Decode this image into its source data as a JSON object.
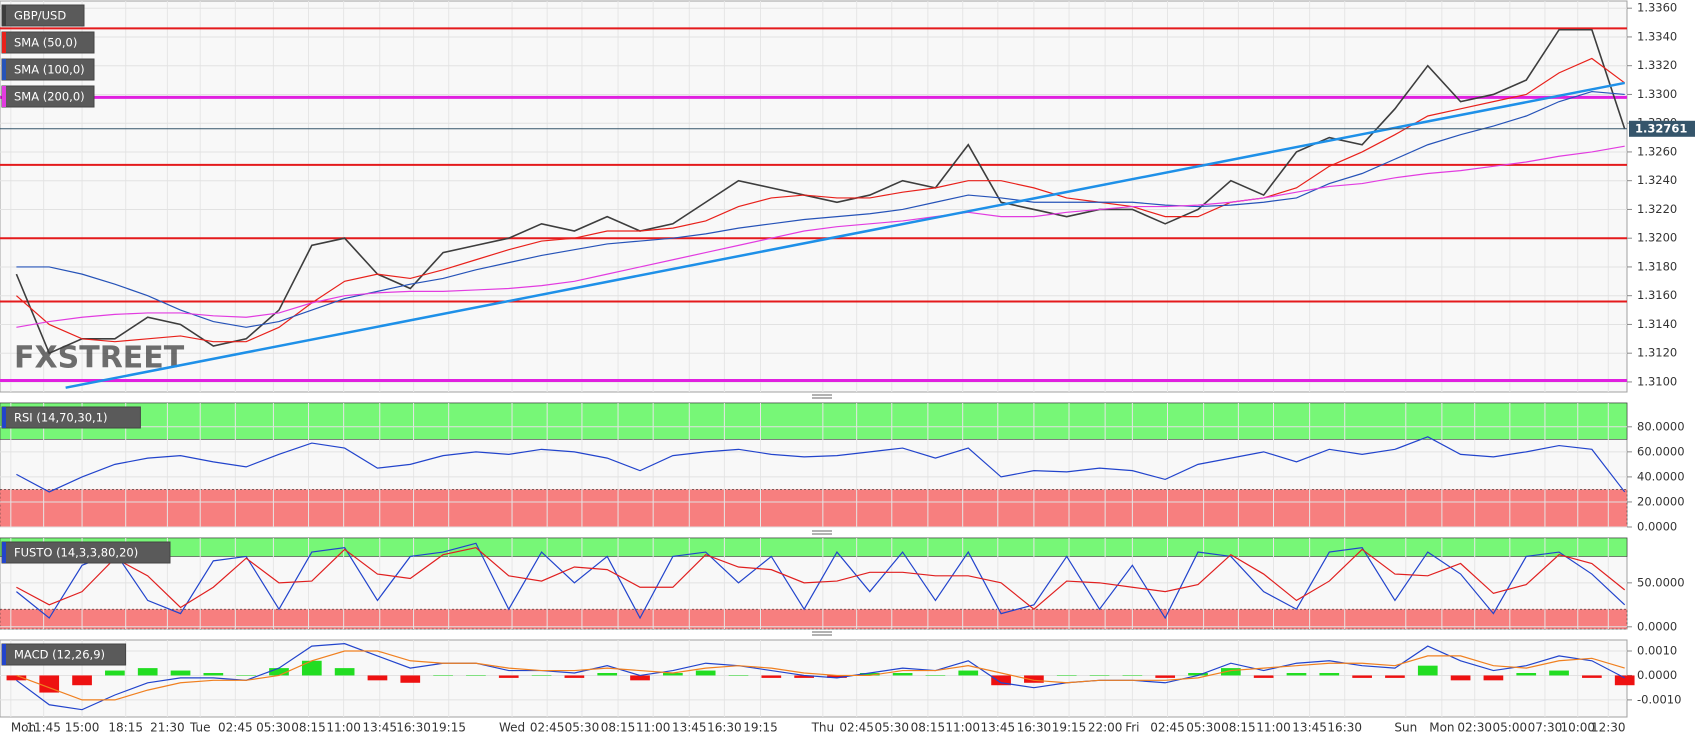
{
  "chart_data": [
    {
      "type": "line",
      "grid": true,
      "watermark": "FXSTREET",
      "x": [
        0,
        1,
        2,
        3,
        4,
        5,
        6,
        7,
        8,
        9,
        10,
        11,
        12,
        13,
        14,
        15,
        16,
        17,
        18,
        19,
        20,
        21,
        22,
        23,
        24,
        25,
        26,
        27,
        28,
        29,
        30,
        31,
        32,
        33,
        34,
        35,
        36,
        37,
        38,
        39,
        40,
        41,
        42,
        43,
        44,
        45,
        46,
        47,
        48,
        49
      ],
      "xlim": [
        -0.5,
        49.07
      ],
      "xticks": [
        {
          "value": -0.17,
          "label": "Mon"
        },
        {
          "value": 0.83,
          "label": "11:45"
        },
        {
          "value": 2.0,
          "label": "15:00"
        },
        {
          "value": 3.33,
          "label": "18:15"
        },
        {
          "value": 4.6,
          "label": "21:30"
        },
        {
          "value": 5.6,
          "label": "Tue"
        },
        {
          "value": 6.67,
          "label": "02:45"
        },
        {
          "value": 7.83,
          "label": "05:30"
        },
        {
          "value": 8.9,
          "label": "08:15"
        },
        {
          "value": 9.97,
          "label": "11:00"
        },
        {
          "value": 11.07,
          "label": "13:45"
        },
        {
          "value": 12.1,
          "label": "16:30"
        },
        {
          "value": 13.17,
          "label": "19:15"
        },
        {
          "value": 15.1,
          "label": "Wed"
        },
        {
          "value": 16.17,
          "label": "02:45"
        },
        {
          "value": 17.23,
          "label": "05:30"
        },
        {
          "value": 18.33,
          "label": "08:15"
        },
        {
          "value": 19.4,
          "label": "11:00"
        },
        {
          "value": 20.5,
          "label": "13:45"
        },
        {
          "value": 21.57,
          "label": "16:30"
        },
        {
          "value": 22.67,
          "label": "19:15"
        },
        {
          "value": 24.57,
          "label": "Thu"
        },
        {
          "value": 25.6,
          "label": "02:45"
        },
        {
          "value": 26.67,
          "label": "05:30"
        },
        {
          "value": 27.77,
          "label": "08:15"
        },
        {
          "value": 28.83,
          "label": "11:00"
        },
        {
          "value": 29.9,
          "label": "13:45"
        },
        {
          "value": 31.0,
          "label": "16:30"
        },
        {
          "value": 32.07,
          "label": "19:15"
        },
        {
          "value": 33.17,
          "label": "22:00"
        },
        {
          "value": 34.0,
          "label": "Fri"
        },
        {
          "value": 35.07,
          "label": "02:45"
        },
        {
          "value": 36.17,
          "label": "05:30"
        },
        {
          "value": 37.23,
          "label": "08:15"
        },
        {
          "value": 38.3,
          "label": "11:00"
        },
        {
          "value": 39.4,
          "label": "13:45"
        },
        {
          "value": 40.47,
          "label": "16:30"
        },
        {
          "value": 42.33,
          "label": "Sun"
        },
        {
          "value": 43.43,
          "label": "Mon"
        },
        {
          "value": 44.43,
          "label": "02:30"
        },
        {
          "value": 45.5,
          "label": "05:00"
        },
        {
          "value": 46.57,
          "label": "07:30"
        },
        {
          "value": 47.57,
          "label": "10:00"
        },
        {
          "value": 48.5,
          "label": "12:30"
        }
      ],
      "ylim": [
        1.3093,
        1.3365
      ],
      "yticks": [
        {
          "value": 1.31,
          "label": "1.3100"
        },
        {
          "value": 1.312,
          "label": "1.3120"
        },
        {
          "value": 1.314,
          "label": "1.3140"
        },
        {
          "value": 1.316,
          "label": "1.3160"
        },
        {
          "value": 1.318,
          "label": "1.3180"
        },
        {
          "value": 1.32,
          "label": "1.3200"
        },
        {
          "value": 1.322,
          "label": "1.3220"
        },
        {
          "value": 1.324,
          "label": "1.3240"
        },
        {
          "value": 1.326,
          "label": "1.3260"
        },
        {
          "value": 1.328,
          "label": "1.3280"
        },
        {
          "value": 1.33,
          "label": "1.3300"
        },
        {
          "value": 1.332,
          "label": "1.3320"
        },
        {
          "value": 1.334,
          "label": "1.3340"
        },
        {
          "value": 1.336,
          "label": "1.3360"
        }
      ],
      "levels": [
        {
          "value": 1.3346,
          "color": "#e41a1c"
        },
        {
          "value": 1.3298,
          "color": "#e020e0"
        },
        {
          "value": 1.3251,
          "color": "#e41a1c"
        },
        {
          "value": 1.32,
          "color": "#e41a1c"
        },
        {
          "value": 1.3156,
          "color": "#e41a1c"
        },
        {
          "value": 1.3101,
          "color": "#e020e0"
        }
      ],
      "trendline": {
        "x": [
          1.5,
          49.0
        ],
        "y": [
          1.3096,
          1.3308
        ],
        "color": "#1e90e8"
      },
      "last_price": 1.32761,
      "series": [
        {
          "name": "GBP/USD",
          "color": "#3d3d3d",
          "values": [
            1.3175,
            1.312,
            1.313,
            1.313,
            1.3145,
            1.314,
            1.3125,
            1.313,
            1.315,
            1.3195,
            1.32,
            1.3175,
            1.3165,
            1.319,
            1.3195,
            1.32,
            1.321,
            1.3205,
            1.3215,
            1.3205,
            1.321,
            1.3225,
            1.324,
            1.3235,
            1.323,
            1.3225,
            1.323,
            1.324,
            1.3235,
            1.3265,
            1.3225,
            1.322,
            1.3215,
            1.322,
            1.322,
            1.321,
            1.322,
            1.324,
            1.323,
            1.326,
            1.327,
            1.3265,
            1.329,
            1.332,
            1.3295,
            1.33,
            1.331,
            1.3345,
            1.3345,
            1.3276
          ]
        },
        {
          "name": "SMA (50,0)",
          "color": "#e8211b",
          "values": [
            1.316,
            1.314,
            1.313,
            1.3128,
            1.313,
            1.3132,
            1.3128,
            1.3128,
            1.3138,
            1.3155,
            1.317,
            1.3175,
            1.3172,
            1.3178,
            1.3185,
            1.3192,
            1.3198,
            1.32,
            1.3205,
            1.3205,
            1.3207,
            1.3212,
            1.3222,
            1.3228,
            1.323,
            1.3228,
            1.3228,
            1.3232,
            1.3235,
            1.324,
            1.324,
            1.3235,
            1.3228,
            1.3225,
            1.3222,
            1.3215,
            1.3215,
            1.3225,
            1.3228,
            1.3235,
            1.325,
            1.326,
            1.3272,
            1.3285,
            1.329,
            1.3295,
            1.33,
            1.3315,
            1.3325,
            1.3308
          ]
        },
        {
          "name": "SMA (100,0)",
          "color": "#2653b8",
          "values": [
            1.318,
            1.318,
            1.3175,
            1.3168,
            1.316,
            1.315,
            1.3142,
            1.3138,
            1.3142,
            1.315,
            1.3158,
            1.3163,
            1.3168,
            1.3172,
            1.3178,
            1.3183,
            1.3188,
            1.3192,
            1.3196,
            1.3198,
            1.32,
            1.3203,
            1.3207,
            1.321,
            1.3213,
            1.3215,
            1.3217,
            1.322,
            1.3225,
            1.323,
            1.3228,
            1.3225,
            1.3225,
            1.3225,
            1.3225,
            1.3223,
            1.3222,
            1.3223,
            1.3225,
            1.3228,
            1.3238,
            1.3245,
            1.3255,
            1.3265,
            1.3272,
            1.3278,
            1.3285,
            1.3295,
            1.3302,
            1.33
          ]
        },
        {
          "name": "SMA (200,0)",
          "color": "#e23ce0",
          "values": [
            1.3138,
            1.3142,
            1.3145,
            1.3147,
            1.3148,
            1.3148,
            1.3146,
            1.3145,
            1.3148,
            1.3155,
            1.316,
            1.3162,
            1.3163,
            1.3163,
            1.3164,
            1.3165,
            1.3167,
            1.317,
            1.3175,
            1.318,
            1.3185,
            1.319,
            1.3195,
            1.32,
            1.3205,
            1.3208,
            1.321,
            1.3212,
            1.3215,
            1.3218,
            1.3215,
            1.3215,
            1.3218,
            1.322,
            1.3222,
            1.3222,
            1.3223,
            1.3225,
            1.3228,
            1.3232,
            1.3236,
            1.3238,
            1.3242,
            1.3245,
            1.3247,
            1.325,
            1.3253,
            1.3257,
            1.326,
            1.3264
          ]
        }
      ]
    },
    {
      "type": "line",
      "title": "RSI (14,70,30,1)",
      "grid": true,
      "ylim": [
        0,
        99
      ],
      "yticks": [
        {
          "value": 0,
          "label": "0.0000"
        },
        {
          "value": 20,
          "label": "20.0000"
        },
        {
          "value": 40,
          "label": "40.0000"
        },
        {
          "value": 60,
          "label": "60.0000"
        },
        {
          "value": 80,
          "label": "80.0000"
        }
      ],
      "overbought": 70,
      "oversold": 30,
      "overbought_color": "#77f777",
      "oversold_color": "#f77f7f",
      "series": [
        {
          "color": "#2244cc",
          "values": [
            42,
            28,
            40,
            50,
            55,
            57,
            52,
            48,
            58,
            67,
            63,
            47,
            50,
            57,
            60,
            58,
            62,
            60,
            55,
            45,
            57,
            60,
            62,
            58,
            56,
            57,
            60,
            63,
            55,
            63,
            40,
            45,
            44,
            47,
            45,
            38,
            50,
            55,
            60,
            52,
            62,
            58,
            62,
            72,
            58,
            56,
            60,
            65,
            62,
            28
          ]
        }
      ]
    },
    {
      "type": "line",
      "title": "FUSTO (14,3,3,80,20)",
      "grid": true,
      "ylim": [
        -2.5,
        101
      ],
      "yticks": [
        {
          "value": 0,
          "label": "0.0000"
        },
        {
          "value": 50,
          "label": "50.0000"
        }
      ],
      "overbought": 80,
      "oversold": 20,
      "overbought_color": "#77f777",
      "oversold_color": "#f77f7f",
      "series": [
        {
          "color": "#2244cc",
          "values": [
            40,
            10,
            70,
            85,
            30,
            15,
            75,
            80,
            20,
            85,
            90,
            30,
            80,
            85,
            95,
            20,
            85,
            50,
            80,
            10,
            80,
            85,
            50,
            80,
            20,
            85,
            40,
            85,
            30,
            85,
            15,
            25,
            80,
            20,
            70,
            10,
            85,
            80,
            40,
            20,
            85,
            90,
            30,
            85,
            60,
            15,
            80,
            85,
            60,
            25
          ]
        },
        {
          "color": "#e02020",
          "values": [
            45,
            25,
            40,
            78,
            58,
            22,
            45,
            78,
            50,
            52,
            88,
            60,
            55,
            82,
            90,
            58,
            52,
            68,
            65,
            45,
            45,
            82,
            68,
            65,
            50,
            52,
            62,
            62,
            58,
            58,
            50,
            20,
            52,
            50,
            45,
            40,
            48,
            82,
            60,
            30,
            52,
            88,
            60,
            58,
            72,
            38,
            48,
            82,
            72,
            42
          ]
        }
      ]
    },
    {
      "type": "line",
      "title": "MACD (12,26,9)",
      "grid": true,
      "ylim": [
        -0.0017,
        0.00145
      ],
      "yticks": [
        {
          "value": -0.001,
          "label": "-0.0010"
        },
        {
          "value": 0,
          "label": "0.0000"
        },
        {
          "value": 0.001,
          "label": "0.0010"
        }
      ],
      "series": [
        {
          "kind": "histogram",
          "positive_color": "#22dd22",
          "negative_color": "#ee1111",
          "values": [
            -0.0002,
            -0.0007,
            -0.0004,
            0.0002,
            0.0003,
            0.0002,
            0.0001,
            0,
            0.0003,
            0.0006,
            0.0003,
            -0.0002,
            -0.0003,
            0,
            0,
            -0.0001,
            0,
            -0.0001,
            0.0001,
            -0.0002,
            0.0001,
            0.0002,
            0,
            -0.0001,
            -0.0001,
            -0.0001,
            0.0001,
            0.0001,
            0,
            0.0002,
            -0.0004,
            -0.0003,
            0,
            0,
            0,
            -0.0001,
            0.0001,
            0.0003,
            -0.0001,
            0.0001,
            0.0001,
            -0.0001,
            -0.0001,
            0.0004,
            -0.0002,
            -0.0002,
            0.0001,
            0.0002,
            -0.0001,
            -0.0004
          ]
        },
        {
          "color": "#2244cc",
          "values": [
            -0.0002,
            -0.0012,
            -0.0014,
            -0.0008,
            -0.0003,
            -0.0001,
            -0.0001,
            -0.0002,
            0.0003,
            0.0012,
            0.0013,
            0.0008,
            0.0003,
            0.0005,
            0.0005,
            0.0002,
            0.0002,
            0.0001,
            0.0004,
            0,
            0.0002,
            0.0005,
            0.0004,
            0.0002,
            0,
            -0.0001,
            0.0001,
            0.0003,
            0.0002,
            0.0006,
            -0.0003,
            -0.0005,
            -0.0003,
            -0.0002,
            -0.0002,
            -0.0003,
            0,
            0.0005,
            0.0002,
            0.0005,
            0.0006,
            0.0004,
            0.0003,
            0.0012,
            0.0006,
            0.0002,
            0.0004,
            0.0008,
            0.0006,
            -0.0001
          ]
        },
        {
          "color": "#f08020",
          "values": [
            0,
            -0.0005,
            -0.001,
            -0.001,
            -0.0006,
            -0.0003,
            -0.0002,
            -0.0002,
            0,
            0.0006,
            0.001,
            0.001,
            0.0006,
            0.0005,
            0.0005,
            0.0003,
            0.0002,
            0.0002,
            0.0003,
            0.0002,
            0.0001,
            0.0003,
            0.0004,
            0.0003,
            0.0001,
            0,
            0,
            0.0002,
            0.0002,
            0.0004,
            0.0001,
            -0.0002,
            -0.0003,
            -0.0002,
            -0.0002,
            -0.0002,
            -0.0001,
            0.0002,
            0.0003,
            0.0004,
            0.0005,
            0.0005,
            0.0004,
            0.0008,
            0.0008,
            0.0004,
            0.0003,
            0.0006,
            0.0007,
            0.0003
          ]
        }
      ]
    }
  ]
}
